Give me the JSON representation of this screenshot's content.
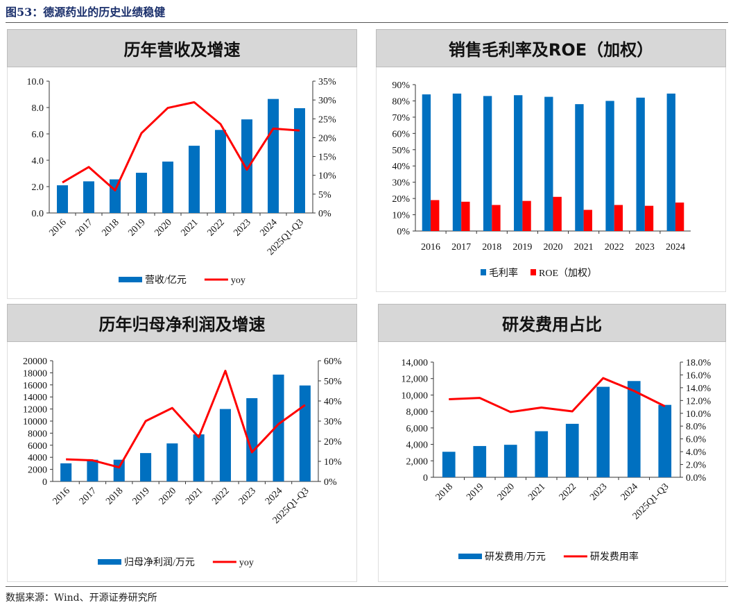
{
  "header": {
    "title": "图53：德源药业的历史业绩稳健"
  },
  "footer": {
    "source": "数据来源：Wind、开源证券研究所"
  },
  "colors": {
    "bar": "#0070c0",
    "line": "#ff0000",
    "title_bg": "#d7d7d7"
  },
  "chart_data": [
    {
      "id": "revenue",
      "title": "历年营收及增速",
      "type": "bar+line",
      "categories": [
        "2016",
        "2017",
        "2018",
        "2019",
        "2020",
        "2021",
        "2022",
        "2023",
        "2024",
        "2025Q1-Q3"
      ],
      "series": [
        {
          "name": "营收/亿元",
          "type": "bar",
          "axis": "left",
          "values": [
            2.1,
            2.4,
            2.55,
            3.05,
            3.9,
            5.1,
            6.3,
            7.1,
            8.65,
            7.95
          ]
        },
        {
          "name": "yoy",
          "type": "line",
          "axis": "right",
          "values": [
            8.1,
            12.2,
            6.0,
            21.2,
            27.9,
            29.4,
            23.6,
            11.5,
            22.4,
            21.9
          ]
        }
      ],
      "ylim": [
        0,
        10
      ],
      "yticks": [
        "0.0",
        "2.0",
        "4.0",
        "6.0",
        "8.0",
        "10.0"
      ],
      "y2lim": [
        0,
        35
      ],
      "y2ticks": [
        "0%",
        "5%",
        "10%",
        "15%",
        "20%",
        "25%",
        "30%",
        "35%"
      ],
      "xlabel_rotation": -45,
      "legend": "bottom"
    },
    {
      "id": "margin",
      "title": "销售毛利率及ROE（加权）",
      "type": "grouped-bar",
      "categories": [
        "2016",
        "2017",
        "2018",
        "2019",
        "2020",
        "2021",
        "2022",
        "2023",
        "2024"
      ],
      "series": [
        {
          "name": "毛利率",
          "type": "bar",
          "axis": "left",
          "values": [
            84,
            84.5,
            83,
            83.5,
            82.5,
            78,
            80,
            82,
            84.5
          ],
          "color": "#0070c0"
        },
        {
          "name": "ROE（加权）",
          "type": "bar",
          "axis": "left",
          "values": [
            19,
            18,
            16,
            18.5,
            21,
            13,
            16,
            15.5,
            17.5
          ],
          "color": "#ff0000"
        }
      ],
      "ylim": [
        0,
        90
      ],
      "yticks": [
        "0%",
        "10%",
        "20%",
        "30%",
        "40%",
        "50%",
        "60%",
        "70%",
        "80%",
        "90%"
      ],
      "xlabel_rotation": 0,
      "legend": "bottom"
    },
    {
      "id": "netprofit",
      "title": "历年归母净利润及增速",
      "type": "bar+line",
      "categories": [
        "2016",
        "2017",
        "2018",
        "2019",
        "2020",
        "2021",
        "2022",
        "2023",
        "2024",
        "2025Q1-Q3"
      ],
      "series": [
        {
          "name": "归母净利润/万元",
          "type": "bar",
          "axis": "left",
          "values": [
            3000,
            3600,
            3600,
            4700,
            6300,
            7800,
            12000,
            13800,
            17700,
            15900
          ]
        },
        {
          "name": "yoy",
          "type": "line",
          "axis": "right",
          "values": [
            11,
            10.5,
            7,
            30,
            36.5,
            22,
            55,
            14.5,
            28.5,
            38
          ]
        }
      ],
      "ylim": [
        0,
        20000
      ],
      "yticks": [
        "0",
        "2000",
        "4000",
        "6000",
        "8000",
        "10000",
        "12000",
        "14000",
        "16000",
        "18000",
        "20000"
      ],
      "y2lim": [
        0,
        60
      ],
      "y2ticks": [
        "0%",
        "10%",
        "20%",
        "30%",
        "40%",
        "50%",
        "60%"
      ],
      "xlabel_rotation": -45,
      "legend": "bottom"
    },
    {
      "id": "rnd",
      "title": "研发费用占比",
      "type": "bar+line",
      "categories": [
        "2018",
        "2019",
        "2020",
        "2021",
        "2022",
        "2023",
        "2024",
        "2025Q1-Q3"
      ],
      "series": [
        {
          "name": "研发费用/万元",
          "type": "bar",
          "axis": "left",
          "values": [
            3100,
            3800,
            3950,
            5600,
            6500,
            11000,
            11700,
            8800
          ]
        },
        {
          "name": "研发费用率",
          "type": "line",
          "axis": "right",
          "values": [
            12.2,
            12.4,
            10.2,
            10.9,
            10.3,
            15.5,
            13.5,
            11.1
          ]
        }
      ],
      "ylim": [
        0,
        14000
      ],
      "yticks": [
        "0",
        "2,000",
        "4,000",
        "6,000",
        "8,000",
        "10,000",
        "12,000",
        "14,000"
      ],
      "y2lim": [
        0,
        18
      ],
      "y2ticks": [
        "0.0%",
        "2.0%",
        "4.0%",
        "6.0%",
        "8.0%",
        "10.0%",
        "12.0%",
        "14.0%",
        "16.0%",
        "18.0%"
      ],
      "xlabel_rotation": -45,
      "legend": "bottom"
    }
  ]
}
